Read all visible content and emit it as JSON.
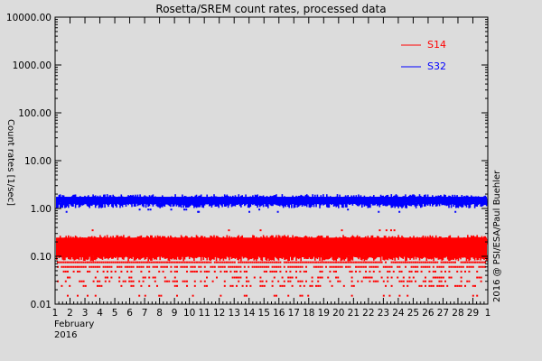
{
  "chart_data": {
    "type": "scatter",
    "title": "Rosetta/SREM count rates, processed data",
    "ylabel": "Count rates [1/sec]",
    "xlabel_lines": [
      "February",
      "2016"
    ],
    "copyright": "2016 @ PSI/ESA/Paul Buehler",
    "y_scale": "log",
    "ylim": [
      0.01,
      10000
    ],
    "y_ticks": [
      {
        "value": 10000,
        "label": "10000.00"
      },
      {
        "value": 1000,
        "label": "1000.00"
      },
      {
        "value": 100,
        "label": "100.00"
      },
      {
        "value": 10,
        "label": "10.00"
      },
      {
        "value": 1,
        "label": "1.00"
      },
      {
        "value": 0.1,
        "label": "0.10"
      },
      {
        "value": 0.01,
        "label": "0.01"
      }
    ],
    "xlim": [
      1,
      30
    ],
    "x_ticks": [
      "1",
      "2",
      "3",
      "4",
      "5",
      "6",
      "7",
      "8",
      "9",
      "10",
      "11",
      "12",
      "13",
      "14",
      "15",
      "16",
      "17",
      "18",
      "19",
      "20",
      "21",
      "22",
      "23",
      "24",
      "25",
      "26",
      "27",
      "28",
      "29",
      "1"
    ],
    "legend_placement": "top-right",
    "series": [
      {
        "name": "S14",
        "color": "#ff0000",
        "band_min": 0.09,
        "band_max": 0.28,
        "discrete_levels": [
          0.075,
          0.06,
          0.048,
          0.036,
          0.03,
          0.024,
          0.015
        ],
        "outliers": [
          0.35
        ]
      },
      {
        "name": "S32",
        "color": "#0000ff",
        "band_min": 1.15,
        "band_max": 2.0,
        "outliers": [
          0.85,
          0.95
        ]
      }
    ]
  }
}
